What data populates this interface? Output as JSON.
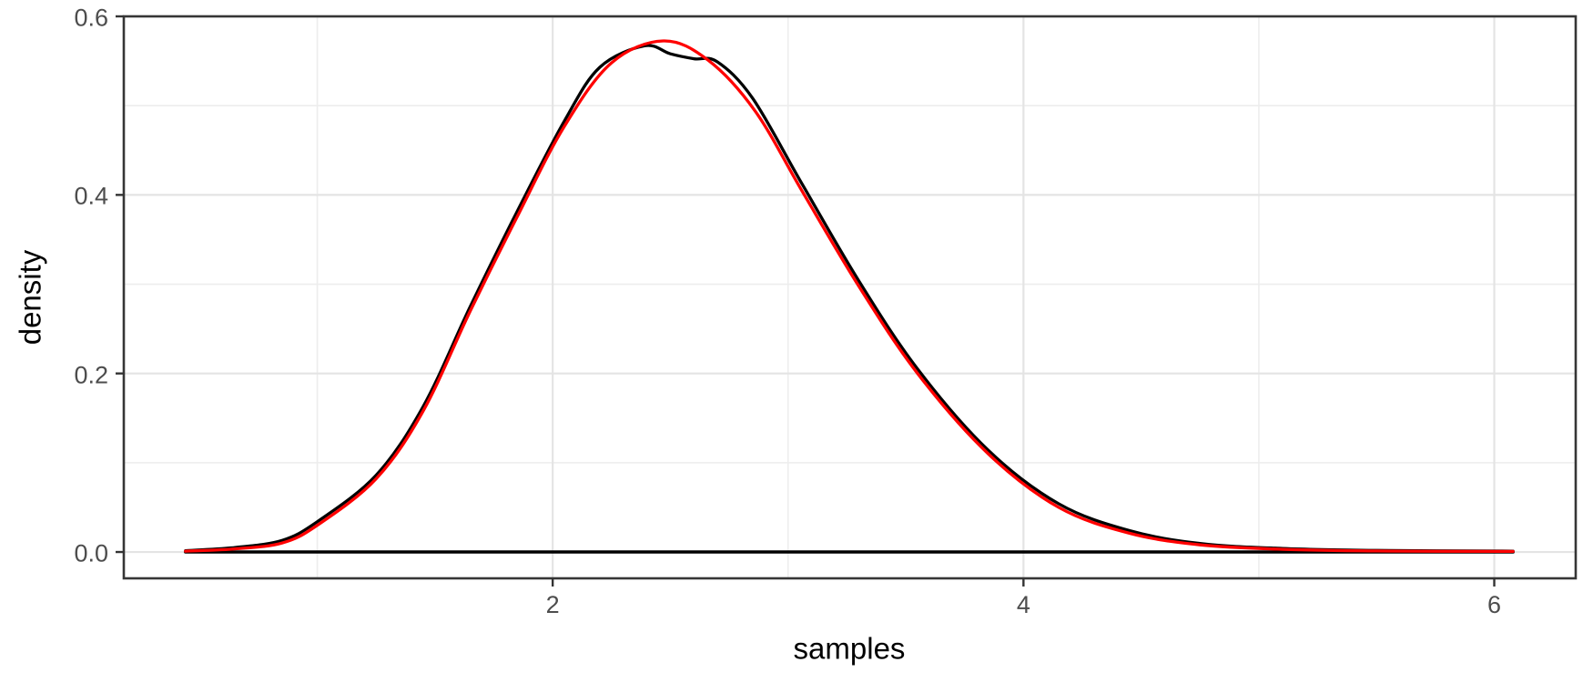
{
  "chart_data": {
    "type": "line",
    "title": "",
    "xlabel": "samples",
    "ylabel": "density",
    "legend": "none",
    "grid": true,
    "background": "#FFFFFF",
    "panel_border_color": "#363636",
    "grid_major_color": "#E4E4E4",
    "grid_minor_color": "#EDEDED",
    "tick_mark_color": "#333333",
    "tick_label_color": "#4D4D4D",
    "axis_title_color": "#000000",
    "xlim": [
      0.178,
      6.346
    ],
    "ylim": [
      -0.0295,
      0.6
    ],
    "x_ticks": [
      {
        "value": 2,
        "label": "2"
      },
      {
        "value": 4,
        "label": "4"
      },
      {
        "value": 6,
        "label": "6"
      }
    ],
    "y_ticks": [
      {
        "value": 0.0,
        "label": "0.0"
      },
      {
        "value": 0.2,
        "label": "0.2"
      },
      {
        "value": 0.4,
        "label": "0.4"
      },
      {
        "value": 0.6,
        "label": "0.6"
      }
    ],
    "x_minor_ticks": [
      1,
      3,
      5
    ],
    "y_minor_ticks": [
      0.1,
      0.3,
      0.5
    ],
    "series": [
      {
        "name": "empirical-density-kde",
        "color": "#000000",
        "width": 3.3,
        "smooth": true,
        "points": [
          [
            0.44,
            0.0015
          ],
          [
            0.65,
            0.005
          ],
          [
            0.85,
            0.013
          ],
          [
            1.0,
            0.034
          ],
          [
            1.25,
            0.086
          ],
          [
            1.45,
            0.163
          ],
          [
            1.65,
            0.275
          ],
          [
            1.85,
            0.382
          ],
          [
            2.05,
            0.483
          ],
          [
            2.2,
            0.543
          ],
          [
            2.39,
            0.567
          ],
          [
            2.5,
            0.558
          ],
          [
            2.6,
            0.5525
          ],
          [
            2.7,
            0.549
          ],
          [
            2.85,
            0.508
          ],
          [
            3.06,
            0.412
          ],
          [
            3.3,
            0.304
          ],
          [
            3.55,
            0.205
          ],
          [
            3.85,
            0.114
          ],
          [
            4.15,
            0.054
          ],
          [
            4.45,
            0.024
          ],
          [
            4.75,
            0.0095
          ],
          [
            5.1,
            0.004
          ],
          [
            5.5,
            0.0018
          ],
          [
            6.08,
            0.001
          ]
        ]
      },
      {
        "name": "kde-baseline",
        "color": "#000000",
        "width": 3.5,
        "smooth": false,
        "points": [
          [
            0.44,
            0.0
          ],
          [
            6.08,
            0.0
          ]
        ]
      },
      {
        "name": "theoretical-density",
        "color": "#FF0000",
        "width": 3.3,
        "smooth": true,
        "points": [
          [
            0.44,
            0.001
          ],
          [
            0.65,
            0.0035
          ],
          [
            0.85,
            0.01
          ],
          [
            1.0,
            0.03
          ],
          [
            1.25,
            0.082
          ],
          [
            1.45,
            0.158
          ],
          [
            1.65,
            0.27
          ],
          [
            1.85,
            0.376
          ],
          [
            2.05,
            0.477
          ],
          [
            2.25,
            0.548
          ],
          [
            2.47,
            0.5725
          ],
          [
            2.66,
            0.551
          ],
          [
            2.86,
            0.494
          ],
          [
            3.06,
            0.404
          ],
          [
            3.3,
            0.298
          ],
          [
            3.55,
            0.2
          ],
          [
            3.85,
            0.11
          ],
          [
            4.15,
            0.05
          ],
          [
            4.45,
            0.021
          ],
          [
            4.75,
            0.008
          ],
          [
            5.1,
            0.003
          ],
          [
            5.5,
            0.0012
          ],
          [
            6.08,
            0.0006
          ]
        ]
      }
    ]
  }
}
